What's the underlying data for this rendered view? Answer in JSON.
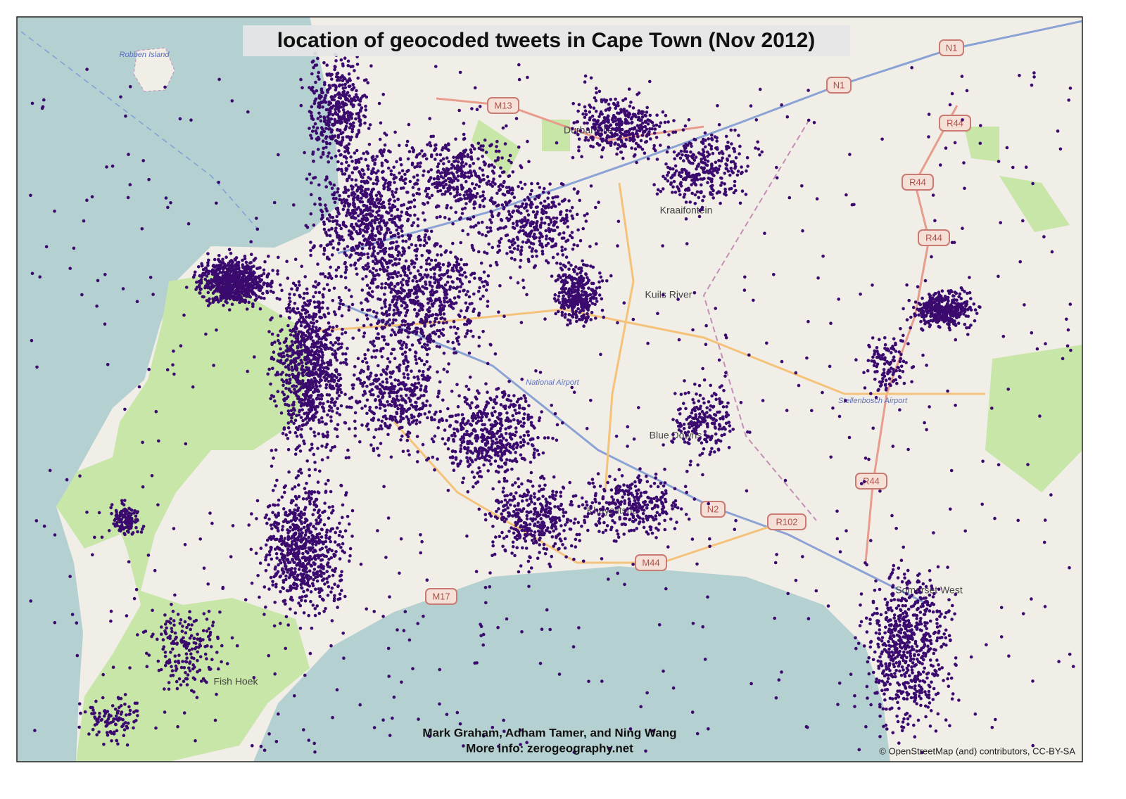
{
  "header": {
    "title": "location of geocoded tweets in Cape Town (Nov 2012)"
  },
  "credits": {
    "authors": "Mark Graham, Adham Tamer, and Ning Wang",
    "info": "More info: zerogeography.net"
  },
  "attribution": "© OpenStreetMap (and) contributors, CC-BY-SA",
  "map": {
    "shields": [
      "N1",
      "N1",
      "M13",
      "R44",
      "R44",
      "R44",
      "R44",
      "N2",
      "R102",
      "M44",
      "M17"
    ],
    "places": [
      "Robben Island",
      "Durbanville",
      "Kraaifontein",
      "Kuils River",
      "National Airport",
      "Blue Downs",
      "Khayelitsha",
      "Stellenbosch Airport",
      "Somerset West",
      "Fish Hoek"
    ]
  }
}
